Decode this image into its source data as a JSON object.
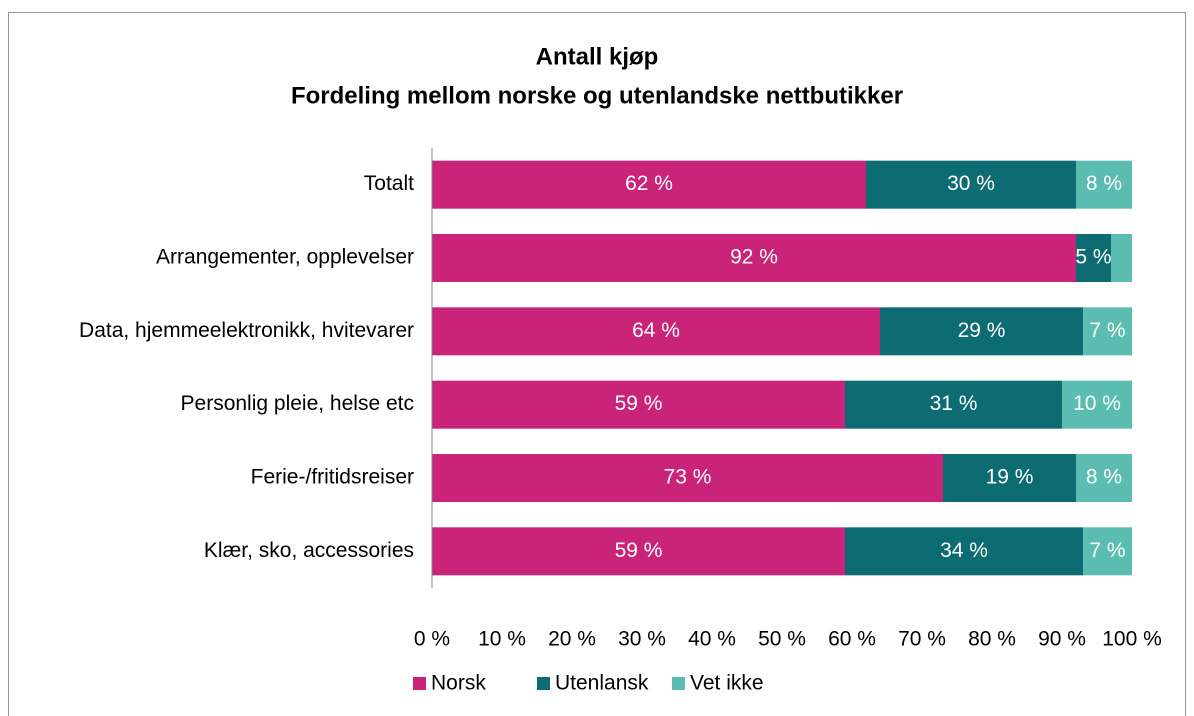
{
  "chart_data": {
    "type": "stacked_bar_horizontal",
    "title": "Antall kjøp",
    "subtitle": "Fordeling mellom norske og utenlandske nettbutikker",
    "categories": [
      "Totalt",
      "Arrangementer, opplevelser",
      "Data, hjemmeelektronikk, hvitevarer",
      "Personlig pleie, helse etc",
      "Ferie-/fritidsreiser",
      "Klær, sko, accessories"
    ],
    "series": [
      {
        "name": "Norsk",
        "color": "#c9247a",
        "values": [
          62,
          92,
          64,
          59,
          73,
          59
        ],
        "value_labels": [
          "62 %",
          "92 %",
          "64 %",
          "59 %",
          "73 %",
          "59 %"
        ]
      },
      {
        "name": "Utenlansk",
        "color": "#0d6b72",
        "values": [
          30,
          5,
          29,
          31,
          19,
          34
        ],
        "value_labels": [
          "30 %",
          "5 %",
          "29 %",
          "31 %",
          "19 %",
          "34 %"
        ]
      },
      {
        "name": "Vet ikke",
        "color": "#5bbcb1",
        "values": [
          8,
          3,
          7,
          10,
          8,
          7
        ],
        "value_labels": [
          "8 %",
          null,
          "7 %",
          "10 %",
          "8 %",
          "7 %"
        ]
      }
    ],
    "xlim": [
      0,
      100
    ],
    "xticks": [
      {
        "value": 0,
        "label": "0 %"
      },
      {
        "value": 10,
        "label": "10 %"
      },
      {
        "value": 20,
        "label": "20 %"
      },
      {
        "value": 30,
        "label": "30 %"
      },
      {
        "value": 40,
        "label": "40 %"
      },
      {
        "value": 50,
        "label": "50 %"
      },
      {
        "value": 60,
        "label": "60 %"
      },
      {
        "value": 70,
        "label": "70 %"
      },
      {
        "value": 80,
        "label": "80 %"
      },
      {
        "value": 90,
        "label": "90 %"
      },
      {
        "value": 100,
        "label": "100 %"
      }
    ],
    "legend": "bottom"
  }
}
